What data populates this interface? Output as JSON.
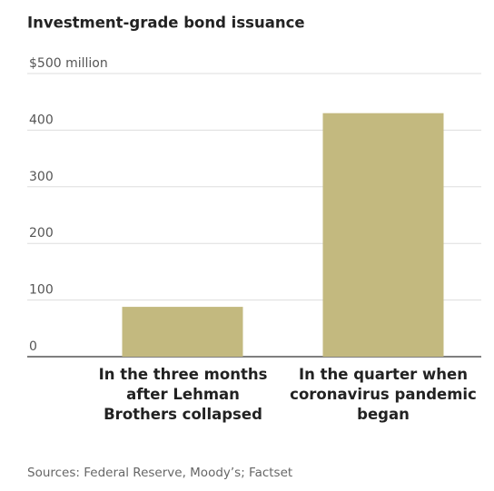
{
  "chart_data": {
    "type": "bar",
    "title": "Investment-grade bond issuance",
    "categories": [
      "In the three months after Lehman Brothers collapsed",
      "In the quarter when coronavirus pandemic began"
    ],
    "values": [
      88,
      430
    ],
    "color": "#c3b97f",
    "ylim": [
      0,
      500
    ],
    "yticks": [
      0,
      100,
      200,
      300,
      400,
      {
        "value": 500,
        "label": "$500 million"
      }
    ],
    "grid": true,
    "source": "Sources: Federal Reserve, Moody’s; Factset"
  }
}
